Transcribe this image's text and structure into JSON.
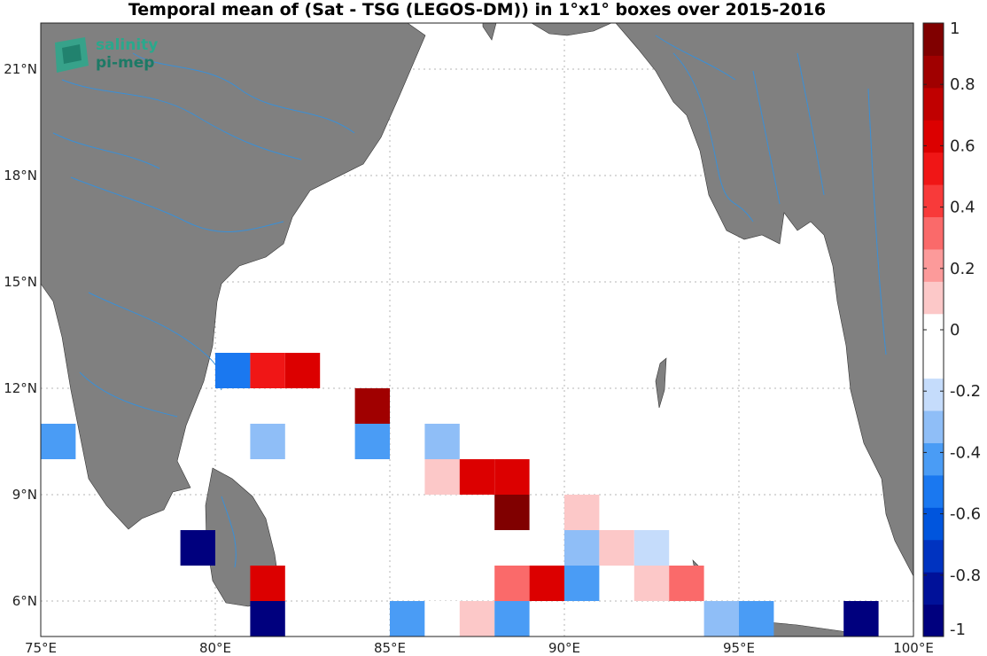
{
  "title": "Temporal mean of (Sat - TSG (LEGOS-DM)) in 1°x1° boxes over 2015-2016",
  "logo": {
    "line1": "salinity",
    "line2": "pi-mep"
  },
  "map": {
    "lon_range": [
      75,
      100
    ],
    "lat_range": [
      5,
      22.3
    ],
    "lon_ticks": [
      {
        "value": 75,
        "label": "75°E"
      },
      {
        "value": 80,
        "label": "80°E"
      },
      {
        "value": 85,
        "label": "85°E"
      },
      {
        "value": 90,
        "label": "90°E"
      },
      {
        "value": 95,
        "label": "95°E"
      },
      {
        "value": 100,
        "label": "100°E"
      }
    ],
    "lat_ticks": [
      {
        "value": 6,
        "label": "6°N"
      },
      {
        "value": 9,
        "label": "9°N"
      },
      {
        "value": 12,
        "label": "12°N"
      },
      {
        "value": 15,
        "label": "15°N"
      },
      {
        "value": 18,
        "label": "18°N"
      },
      {
        "value": 21,
        "label": "21°N"
      }
    ],
    "land_color": "#808080",
    "river_color": "#3a8fd6",
    "grid": true
  },
  "colorbar": {
    "range": [
      -1,
      1
    ],
    "ticks": [
      {
        "value": 1,
        "label": "1"
      },
      {
        "value": 0.8,
        "label": "0.8"
      },
      {
        "value": 0.6,
        "label": "0.6"
      },
      {
        "value": 0.4,
        "label": "0.4"
      },
      {
        "value": 0.2,
        "label": "0.2"
      },
      {
        "value": 0,
        "label": "0"
      },
      {
        "value": -0.2,
        "label": "-0.2"
      },
      {
        "value": -0.4,
        "label": "-0.4"
      },
      {
        "value": -0.6,
        "label": "-0.6"
      },
      {
        "value": -0.8,
        "label": "-0.8"
      },
      {
        "value": -1,
        "label": "-1"
      }
    ],
    "colors": [
      "#00007e",
      "#001199",
      "#0033c0",
      "#0055dd",
      "#1a78f0",
      "#4a9cf5",
      "#8fbef7",
      "#c5dcfb",
      "#ffffff",
      "#ffffff",
      "#fcc8c8",
      "#fc9a9a",
      "#fa6a6a",
      "#f83a3a",
      "#f01616",
      "#dc0000",
      "#c00000",
      "#a00000",
      "#800000"
    ]
  },
  "cells": [
    {
      "lon": 75,
      "lat": 10,
      "value": -0.45
    },
    {
      "lon": 80,
      "lat": 12,
      "value": -0.5
    },
    {
      "lon": 81,
      "lat": 12,
      "value": 0.5
    },
    {
      "lon": 82,
      "lat": 12,
      "value": 0.6
    },
    {
      "lon": 84,
      "lat": 11,
      "value": 0.85
    },
    {
      "lon": 81,
      "lat": 10,
      "value": -0.35
    },
    {
      "lon": 84,
      "lat": 10,
      "value": -0.45
    },
    {
      "lon": 86,
      "lat": 10,
      "value": -0.35
    },
    {
      "lon": 86,
      "lat": 9,
      "value": 0.15
    },
    {
      "lon": 87,
      "lat": 9,
      "value": 0.6
    },
    {
      "lon": 88,
      "lat": 9,
      "value": 0.6
    },
    {
      "lon": 88,
      "lat": 8,
      "value": 0.95
    },
    {
      "lon": 90,
      "lat": 8,
      "value": 0.15
    },
    {
      "lon": 79,
      "lat": 7,
      "value": -0.95
    },
    {
      "lon": 90,
      "lat": 7,
      "value": -0.35
    },
    {
      "lon": 91,
      "lat": 7,
      "value": 0.15
    },
    {
      "lon": 92,
      "lat": 7,
      "value": -0.25
    },
    {
      "lon": 81,
      "lat": 6,
      "value": 0.65
    },
    {
      "lon": 88,
      "lat": 6,
      "value": 0.3
    },
    {
      "lon": 89,
      "lat": 6,
      "value": 0.65
    },
    {
      "lon": 90,
      "lat": 6,
      "value": -0.45
    },
    {
      "lon": 92,
      "lat": 6,
      "value": 0.15
    },
    {
      "lon": 93,
      "lat": 6,
      "value": 0.3
    },
    {
      "lon": 81,
      "lat": 5,
      "value": -0.95
    },
    {
      "lon": 85,
      "lat": 5,
      "value": -0.45
    },
    {
      "lon": 86,
      "lat": 5,
      "value": -0.15
    },
    {
      "lon": 87,
      "lat": 5,
      "value": 0.15
    },
    {
      "lon": 88,
      "lat": 5,
      "value": -0.45
    },
    {
      "lon": 94,
      "lat": 5,
      "value": -0.3
    },
    {
      "lon": 95,
      "lat": 5,
      "value": -0.45
    },
    {
      "lon": 98,
      "lat": 5,
      "value": -0.95
    }
  ]
}
